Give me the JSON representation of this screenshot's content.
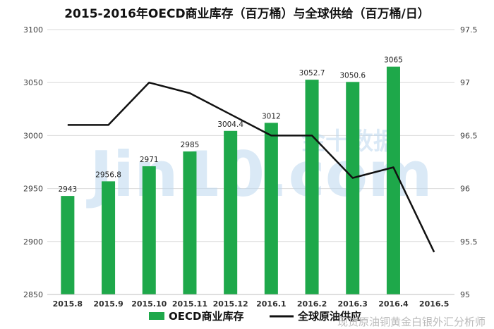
{
  "chart_data": {
    "type": "bar",
    "title": "2015-2016年OECD商业库存（百万桶）与全球供给（百万桶/日）",
    "categories": [
      "2015.8",
      "2015.9",
      "2015.10",
      "2015.11",
      "2015.12",
      "2016.1",
      "2016.2",
      "2016.3",
      "2016.4",
      "2016.5"
    ],
    "series": [
      {
        "name": "OECD商业库存",
        "type": "bar",
        "axis": "left",
        "color": "#1ea84a",
        "values": [
          2943,
          2956.8,
          2971,
          2985,
          3004.4,
          3012,
          3052.7,
          3050.6,
          3065,
          null
        ],
        "labels": [
          "2943",
          "2956.8",
          "2971",
          "2985",
          "3004.4",
          "3012",
          "3052.7",
          "3050.6",
          "3065",
          ""
        ]
      },
      {
        "name": "全球原油供应",
        "type": "line",
        "axis": "right",
        "color": "#111111",
        "values": [
          96.6,
          96.6,
          97.0,
          96.9,
          96.7,
          96.5,
          96.5,
          96.1,
          96.2,
          95.4
        ]
      }
    ],
    "y_left": {
      "min": 2850,
      "max": 3100,
      "ticks": [
        "2850",
        "2900",
        "2950",
        "3000",
        "3050",
        "3100"
      ]
    },
    "y_right": {
      "min": 95,
      "max": 97.5,
      "ticks": [
        "95",
        "95.5",
        "96",
        "96.5",
        "97",
        "97.5"
      ]
    },
    "grid": true,
    "legend": "bottom"
  },
  "watermark": {
    "big_text": "Jin10.com",
    "cn_text": "金十数据",
    "footer_text": "现货原油铜黄金白银外汇分析师"
  }
}
